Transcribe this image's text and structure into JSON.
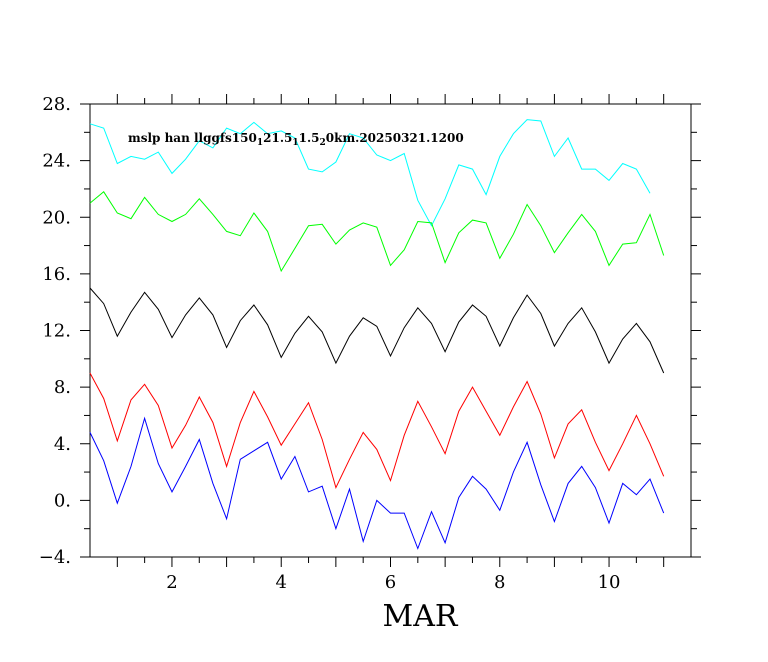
{
  "chart_data": {
    "type": "line",
    "title": {
      "base": "mslp han llggfs150",
      "sub1": "1",
      "mid1": "21.5",
      "sub2": "1",
      "mid2": "1.5",
      "sub3": "2",
      "tail": "0km.20250321.1200"
    },
    "xlabel": "MAR",
    "xlim": [
      0.5,
      11.5
    ],
    "ylim": [
      -4,
      28
    ],
    "yticks": [
      -4,
      0,
      4,
      8,
      12,
      16,
      20,
      24,
      28
    ],
    "ytick_labels": [
      "−4.",
      "0.",
      "4.",
      "8.",
      "12.",
      "16.",
      "20.",
      "24.",
      "28."
    ],
    "xticks": [
      2,
      4,
      6,
      8,
      10
    ],
    "xtick_labels": [
      "2",
      "4",
      "6",
      "8",
      "10"
    ],
    "grid": false,
    "x": [
      0.5,
      0.75,
      1.0,
      1.25,
      1.5,
      1.75,
      2.0,
      2.25,
      2.5,
      2.75,
      3.0,
      3.25,
      3.5,
      3.75,
      4.0,
      4.25,
      4.5,
      4.75,
      5.0,
      5.25,
      5.5,
      5.75,
      6.0,
      6.25,
      6.5,
      6.75,
      7.0,
      7.25,
      7.5,
      7.75,
      8.0,
      8.25,
      8.5,
      8.75,
      9.0,
      9.25,
      9.5,
      9.75,
      10.0,
      10.25,
      10.5,
      10.75,
      11.0
    ],
    "series": [
      {
        "color": "#00ffff",
        "values": [
          26.6,
          26.3,
          23.8,
          24.3,
          24.1,
          24.6,
          23.1,
          24.1,
          25.4,
          24.9,
          26.3,
          25.9,
          26.7,
          25.9,
          26.1,
          25.6,
          23.4,
          23.2,
          23.9,
          25.9,
          25.6,
          24.4,
          24.0,
          24.5,
          21.2,
          19.4,
          21.3,
          23.7,
          23.4,
          21.6,
          24.3,
          25.9,
          26.9,
          26.8,
          24.3,
          25.6,
          23.4,
          23.4,
          22.6,
          23.8,
          23.4,
          21.7,
          null
        ]
      },
      {
        "color": "#00ff00",
        "values": [
          21.0,
          21.8,
          20.3,
          19.9,
          21.4,
          20.2,
          19.7,
          20.2,
          21.3,
          20.2,
          19.0,
          18.7,
          20.3,
          19.0,
          16.2,
          17.8,
          19.4,
          19.5,
          18.1,
          19.1,
          19.6,
          19.3,
          16.6,
          17.7,
          19.7,
          19.6,
          16.8,
          18.9,
          19.8,
          19.6,
          17.1,
          18.8,
          20.9,
          19.4,
          17.5,
          18.9,
          20.2,
          19.0,
          16.6,
          18.1,
          18.2,
          20.2,
          17.3
        ]
      },
      {
        "color": "#000000",
        "values": [
          15.0,
          13.9,
          11.6,
          13.3,
          14.7,
          13.5,
          11.5,
          13.1,
          14.3,
          13.1,
          10.8,
          12.7,
          13.8,
          12.4,
          10.1,
          11.8,
          13.0,
          11.9,
          9.7,
          11.6,
          12.9,
          12.3,
          10.2,
          12.2,
          13.6,
          12.5,
          10.5,
          12.6,
          13.8,
          13.0,
          10.9,
          12.9,
          14.5,
          13.2,
          10.9,
          12.5,
          13.6,
          11.9,
          9.7,
          11.4,
          12.5,
          11.2,
          9.0
        ]
      },
      {
        "color": "#ff0000",
        "values": [
          9.0,
          7.2,
          4.2,
          7.1,
          8.2,
          6.7,
          3.7,
          5.3,
          7.3,
          5.5,
          2.4,
          5.5,
          7.7,
          5.9,
          3.9,
          5.4,
          6.9,
          4.3,
          0.9,
          2.9,
          4.8,
          3.6,
          1.4,
          4.6,
          7.0,
          5.2,
          3.3,
          6.3,
          8.0,
          6.3,
          4.6,
          6.6,
          8.4,
          6.1,
          3.0,
          5.4,
          6.4,
          4.1,
          2.1,
          4.0,
          6.0,
          4.0,
          1.7
        ]
      },
      {
        "color": "#0000ff",
        "values": [
          4.8,
          2.8,
          -0.2,
          2.4,
          5.8,
          2.6,
          0.6,
          2.4,
          4.3,
          1.2,
          -1.3,
          2.9,
          3.5,
          4.1,
          1.5,
          3.1,
          0.6,
          1.0,
          -2.0,
          0.8,
          -2.9,
          0.0,
          -0.9,
          -0.9,
          -3.4,
          -0.8,
          -3.0,
          0.2,
          1.7,
          0.8,
          -0.7,
          2.0,
          4.1,
          1.1,
          -1.5,
          1.2,
          2.4,
          0.9,
          -1.6,
          1.2,
          0.4,
          1.5,
          -0.9
        ]
      }
    ]
  }
}
